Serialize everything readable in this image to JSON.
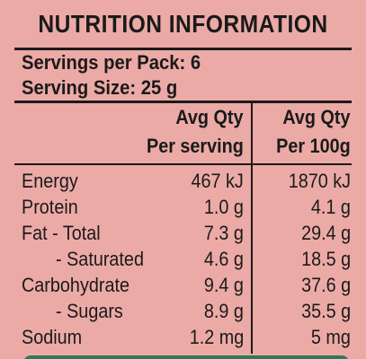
{
  "label": {
    "title": "NUTRITION INFORMATION",
    "servings_per_pack": "Servings per Pack: 6",
    "serving_size": "Serving Size: 25 g",
    "columns": {
      "per_serving_line1": "Avg Qty",
      "per_serving_line2": "Per serving",
      "per_100g_line1": "Avg Qty",
      "per_100g_line2": "Per 100g"
    },
    "rows": [
      {
        "name": "Energy",
        "per_serving": "467 kJ",
        "per_100g": "1870 kJ"
      },
      {
        "name": "Protein",
        "per_serving": "1.0 g",
        "per_100g": "4.1 g"
      },
      {
        "name": "Fat - Total",
        "per_serving": "7.3 g",
        "per_100g": "29.4 g"
      },
      {
        "name": "- Saturated",
        "per_serving": "4.6 g",
        "per_100g": "18.5 g"
      },
      {
        "name": "Carbohydrate",
        "per_serving": "9.4 g",
        "per_100g": "37.6 g"
      },
      {
        "name": "- Sugars",
        "per_serving": "8.9 g",
        "per_100g": "35.5 g"
      },
      {
        "name": "Sodium",
        "per_serving": "1.2 mg",
        "per_100g": "5 mg"
      }
    ]
  },
  "colors": {
    "background": "#ecaaa6",
    "ink": "#1a1a1a",
    "bottom_strip": "#2f7a5a"
  }
}
